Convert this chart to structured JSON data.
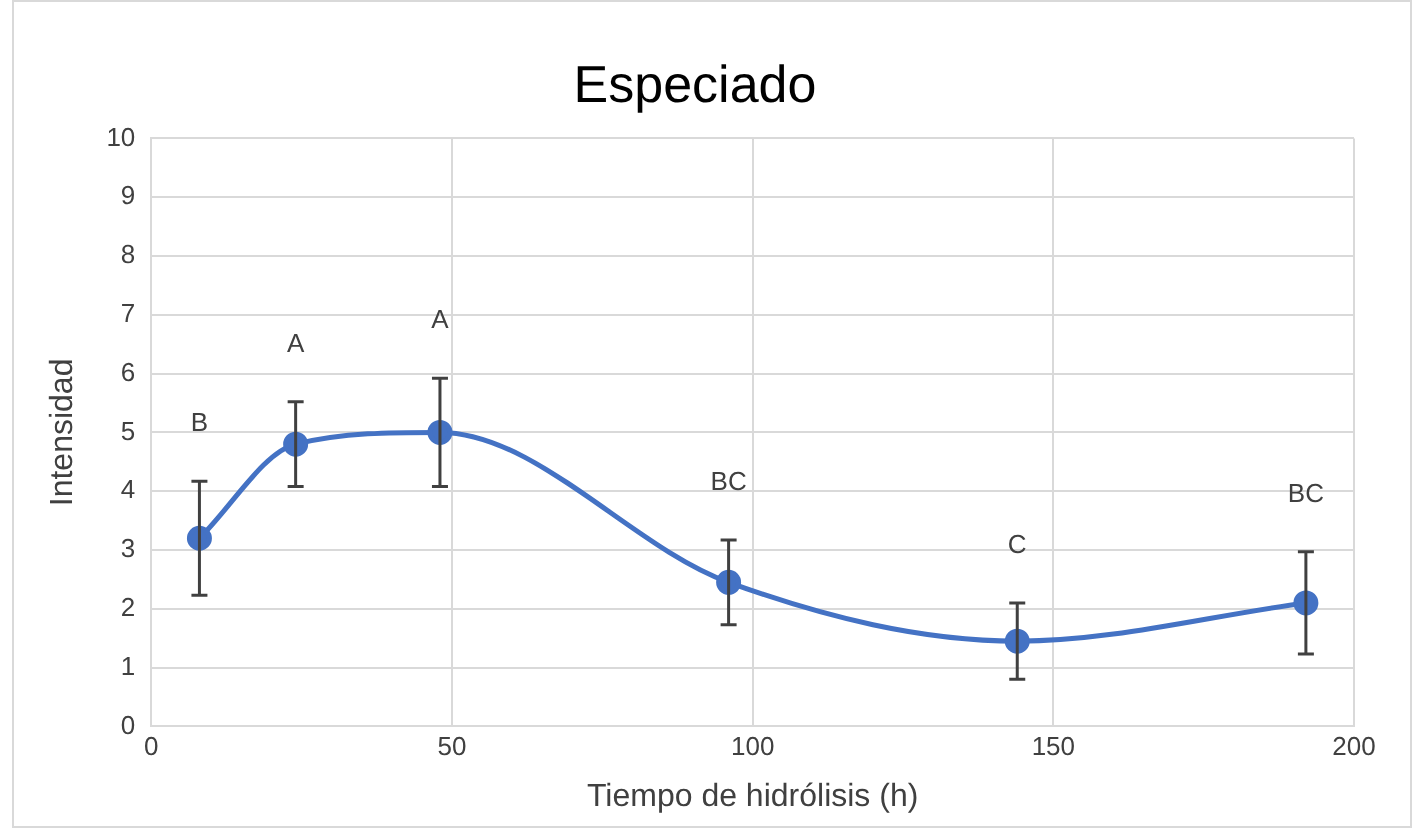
{
  "chart_data": {
    "type": "line",
    "title": "Especiado",
    "xlabel": "Tiempo de hidrólisis (h)",
    "ylabel": "Intensidad",
    "x": [
      8,
      24,
      48,
      96,
      144,
      192
    ],
    "series": [
      {
        "color": "#4472c4",
        "values": [
          3.2,
          4.8,
          5.0,
          2.45,
          1.45,
          2.1
        ],
        "errors": [
          0.97,
          0.72,
          0.92,
          0.72,
          0.65,
          0.87
        ]
      }
    ],
    "xlim": [
      0,
      200
    ],
    "xticks": [
      0,
      50,
      100,
      150,
      200
    ],
    "ylim": [
      0,
      10
    ],
    "yticks": [
      0,
      1,
      2,
      3,
      4,
      5,
      6,
      7,
      8,
      9,
      10
    ],
    "grid": true,
    "legend": false,
    "marker": "circle",
    "line_style": "solid",
    "annotations": [
      "B",
      "A",
      "A",
      "BC",
      "C",
      "BC"
    ]
  }
}
